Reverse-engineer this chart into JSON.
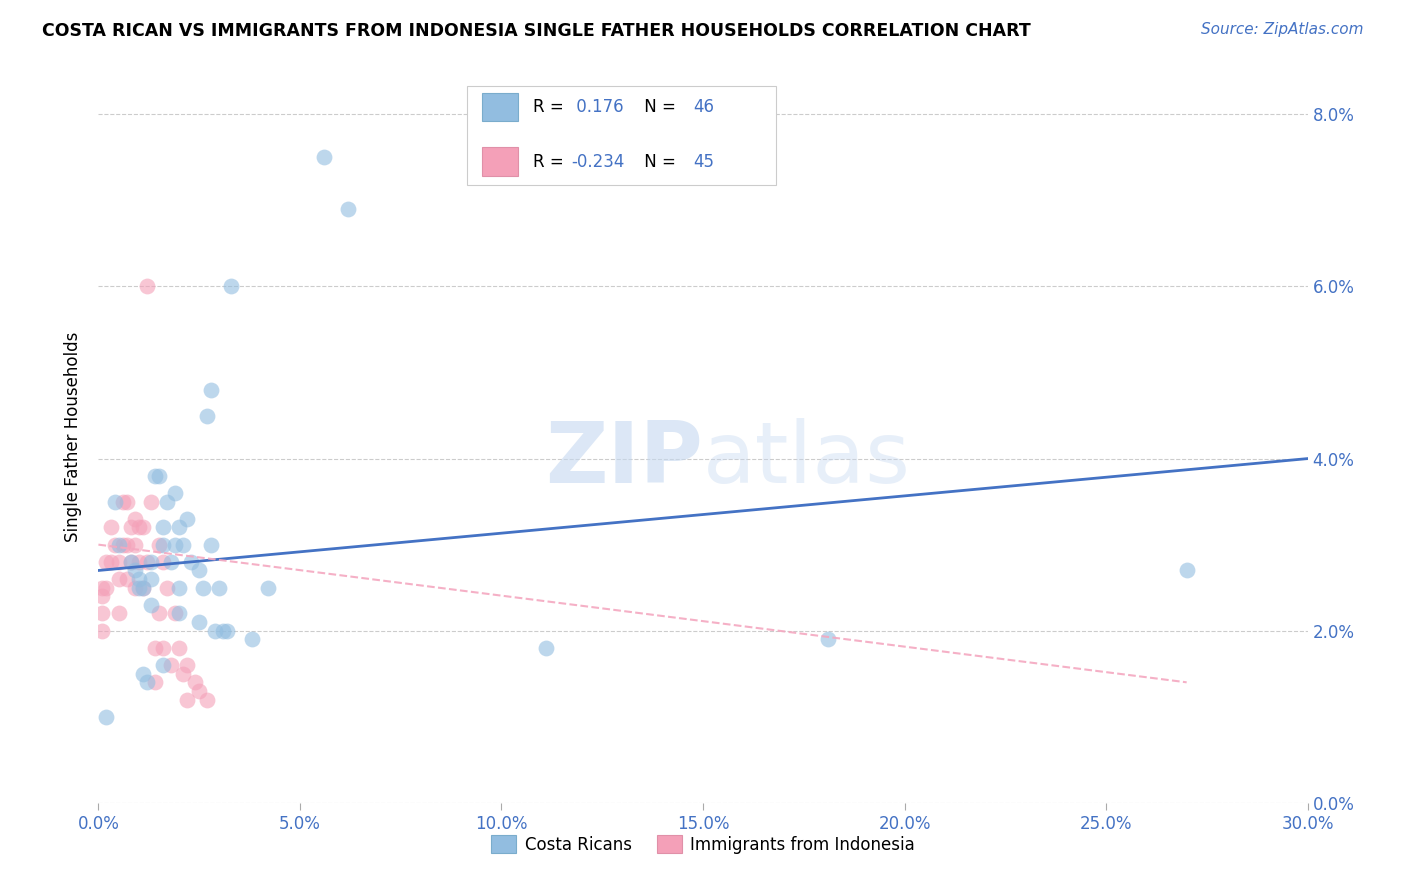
{
  "title": "COSTA RICAN VS IMMIGRANTS FROM INDONESIA SINGLE FATHER HOUSEHOLDS CORRELATION CHART",
  "source": "Source: ZipAtlas.com",
  "xlabel_ticks": [
    "0.0%",
    "5.0%",
    "10.0%",
    "15.0%",
    "20.0%",
    "25.0%",
    "30.0%"
  ],
  "ylabel_ticks": [
    "0.0%",
    "2.0%",
    "4.0%",
    "6.0%",
    "8.0%"
  ],
  "ylabel_label": "Single Father Households",
  "blue_color": "#92bde0",
  "pink_color": "#f4a0b8",
  "blue_line_color": "#4472c4",
  "pink_line_color": "#f4a8c0",
  "watermark_zip": "ZIP",
  "watermark_atlas": "atlas",
  "blue_scatter_x": [
    0.002,
    0.004,
    0.005,
    0.008,
    0.009,
    0.01,
    0.01,
    0.011,
    0.011,
    0.012,
    0.013,
    0.013,
    0.013,
    0.014,
    0.015,
    0.016,
    0.016,
    0.016,
    0.017,
    0.018,
    0.019,
    0.019,
    0.02,
    0.02,
    0.02,
    0.021,
    0.022,
    0.023,
    0.025,
    0.025,
    0.026,
    0.027,
    0.028,
    0.028,
    0.029,
    0.03,
    0.031,
    0.032,
    0.033,
    0.038,
    0.042,
    0.056,
    0.062,
    0.111,
    0.181,
    0.27
  ],
  "blue_scatter_y": [
    0.01,
    0.035,
    0.03,
    0.028,
    0.027,
    0.026,
    0.025,
    0.025,
    0.015,
    0.014,
    0.028,
    0.026,
    0.023,
    0.038,
    0.038,
    0.032,
    0.03,
    0.016,
    0.035,
    0.028,
    0.036,
    0.03,
    0.032,
    0.025,
    0.022,
    0.03,
    0.033,
    0.028,
    0.027,
    0.021,
    0.025,
    0.045,
    0.048,
    0.03,
    0.02,
    0.025,
    0.02,
    0.02,
    0.06,
    0.019,
    0.025,
    0.075,
    0.069,
    0.018,
    0.019,
    0.027
  ],
  "pink_scatter_x": [
    0.001,
    0.001,
    0.001,
    0.001,
    0.002,
    0.002,
    0.003,
    0.003,
    0.004,
    0.005,
    0.005,
    0.005,
    0.006,
    0.006,
    0.007,
    0.007,
    0.007,
    0.008,
    0.008,
    0.009,
    0.009,
    0.009,
    0.01,
    0.01,
    0.011,
    0.011,
    0.012,
    0.012,
    0.013,
    0.014,
    0.014,
    0.015,
    0.015,
    0.016,
    0.016,
    0.017,
    0.018,
    0.019,
    0.02,
    0.021,
    0.022,
    0.022,
    0.024,
    0.025,
    0.027
  ],
  "pink_scatter_y": [
    0.025,
    0.024,
    0.022,
    0.02,
    0.028,
    0.025,
    0.032,
    0.028,
    0.03,
    0.028,
    0.026,
    0.022,
    0.035,
    0.03,
    0.035,
    0.03,
    0.026,
    0.032,
    0.028,
    0.033,
    0.03,
    0.025,
    0.032,
    0.028,
    0.032,
    0.025,
    0.06,
    0.028,
    0.035,
    0.018,
    0.014,
    0.03,
    0.022,
    0.028,
    0.018,
    0.025,
    0.016,
    0.022,
    0.018,
    0.015,
    0.016,
    0.012,
    0.014,
    0.013,
    0.012
  ],
  "blue_line_x": [
    0.0,
    0.3
  ],
  "blue_line_y": [
    0.027,
    0.04
  ],
  "pink_line_x": [
    0.0,
    0.27
  ],
  "pink_line_y": [
    0.03,
    0.014
  ],
  "xlim": [
    0.0,
    0.3
  ],
  "ylim": [
    0.0,
    0.085
  ],
  "legend_labels": [
    "Costa Ricans",
    "Immigrants from Indonesia"
  ]
}
